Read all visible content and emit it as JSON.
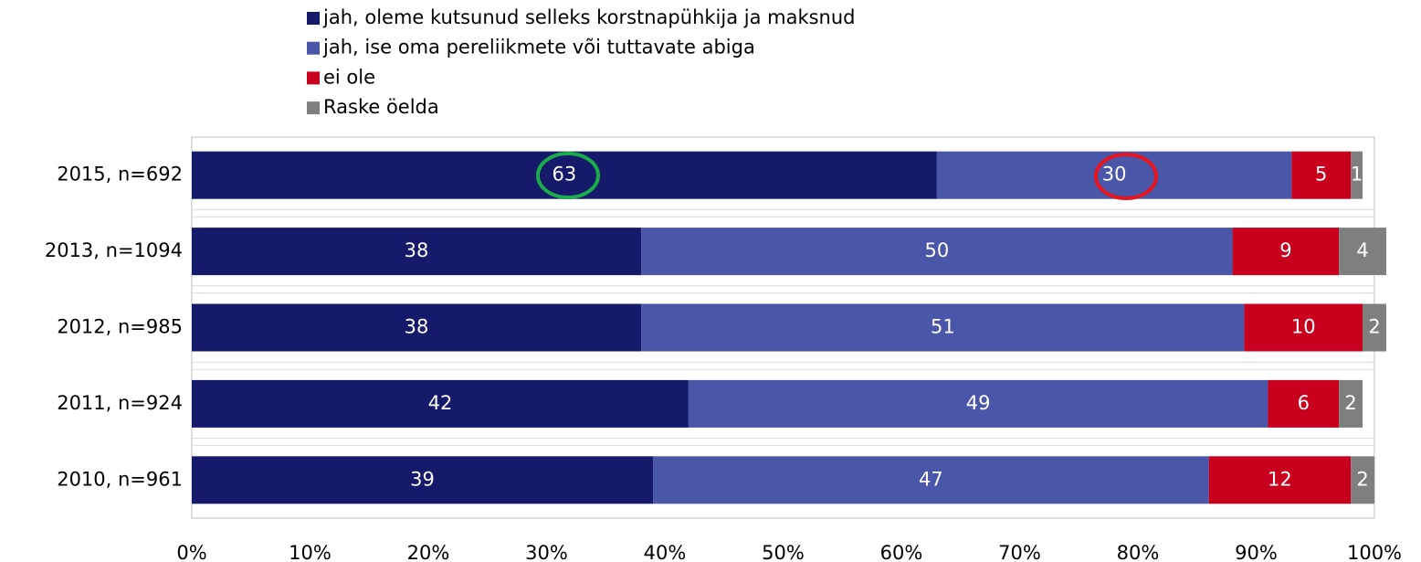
{
  "chart_data": {
    "type": "stacked_barh",
    "categories": [
      "2015, n=692",
      "2013, n=1094",
      "2012, n=985",
      "2011, n=924",
      "2010, n=961"
    ],
    "series": [
      {
        "name": "jah, oleme kutsunud selleks korstnapühkija ja maksnud",
        "color": "#151b6a",
        "values": [
          63,
          38,
          38,
          42,
          39
        ]
      },
      {
        "name": "jah, ise oma pereliikmete või tuttavate abiga",
        "color": "#4a56a8",
        "values": [
          30,
          50,
          51,
          49,
          47
        ]
      },
      {
        "name": "ei ole",
        "color": "#c8001e",
        "values": [
          5,
          9,
          10,
          6,
          12
        ]
      },
      {
        "name": "Raske öelda",
        "color": "#7f7f7f",
        "values": [
          1,
          4,
          2,
          2,
          2
        ]
      }
    ],
    "xlim": [
      0,
      100
    ],
    "xticks": [
      {
        "value": 0,
        "label": "0%"
      },
      {
        "value": 10,
        "label": "10%"
      },
      {
        "value": 20,
        "label": "20%"
      },
      {
        "value": 30,
        "label": "30%"
      },
      {
        "value": 40,
        "label": "40%"
      },
      {
        "value": 50,
        "label": "50%"
      },
      {
        "value": 60,
        "label": "60%"
      },
      {
        "value": 70,
        "label": "70%"
      },
      {
        "value": 80,
        "label": "80%"
      },
      {
        "value": 90,
        "label": "90%"
      },
      {
        "value": 100,
        "label": "100%"
      }
    ],
    "legend": "top"
  }
}
